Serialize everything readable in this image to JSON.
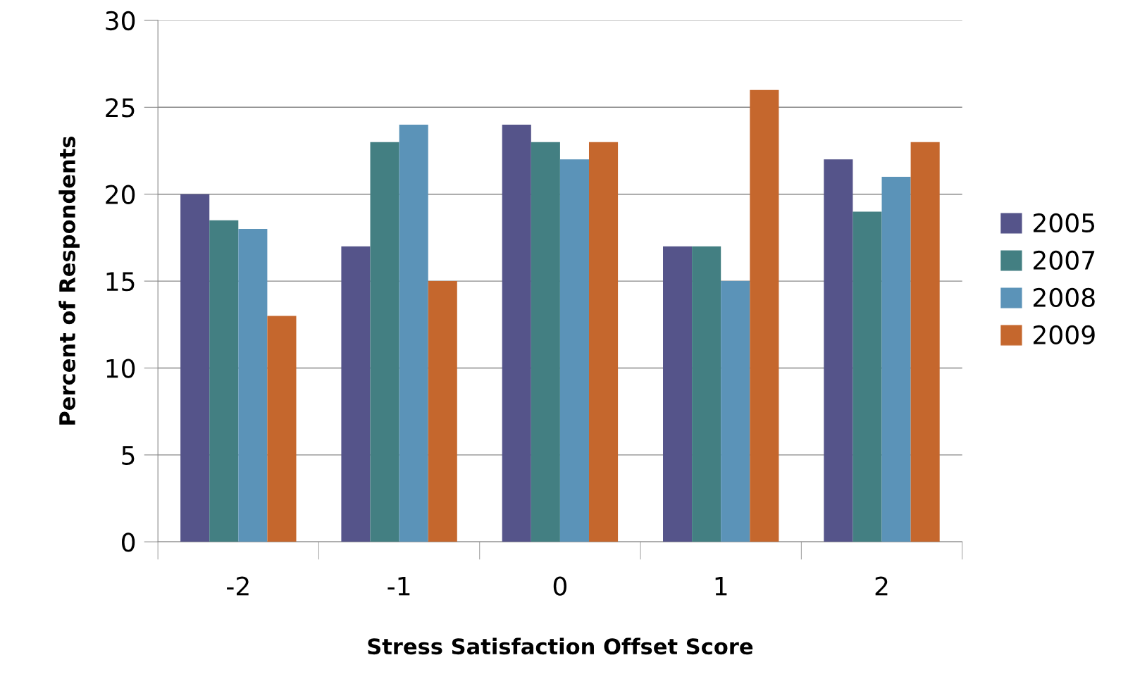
{
  "chart_data": {
    "type": "bar",
    "xlabel": "Stress Satisfaction Offset Score",
    "ylabel": "Percent of Respondents",
    "categories": [
      "-2",
      "-1",
      "0",
      "1",
      "2"
    ],
    "series": [
      {
        "name": "2005",
        "color": "#55548a",
        "values": [
          20,
          17,
          24,
          17,
          22
        ]
      },
      {
        "name": "2007",
        "color": "#437f82",
        "values": [
          18.5,
          23,
          23,
          17,
          19
        ]
      },
      {
        "name": "2008",
        "color": "#5b93b8",
        "values": [
          18,
          24,
          22,
          15,
          21
        ]
      },
      {
        "name": "2009",
        "color": "#c5672d",
        "values": [
          13,
          15,
          23,
          26,
          23
        ]
      }
    ],
    "ylim": [
      0,
      30
    ],
    "yticks": [
      0,
      5,
      10,
      15,
      20,
      25,
      30
    ],
    "grid": "y",
    "legend": "right"
  }
}
